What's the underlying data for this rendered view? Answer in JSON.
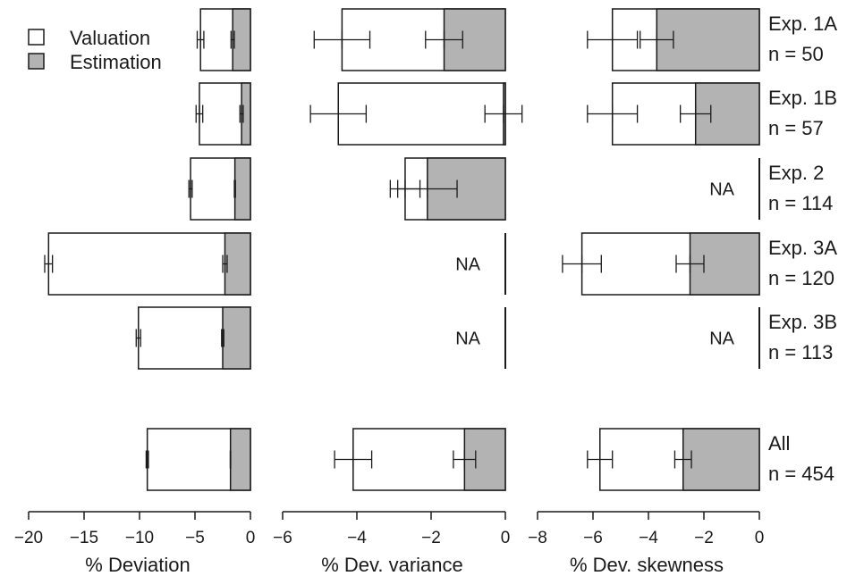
{
  "colors": {
    "valuation": "#ffffff",
    "estimation": "#b3b3b3",
    "stroke": "#1a1a1a"
  },
  "legend": {
    "valuation": "Valuation",
    "estimation": "Estimation",
    "placement": "top-left"
  },
  "na_text": "NA",
  "chart_data": [
    {
      "type": "bar",
      "orientation": "horizontal",
      "xlabel": "% Deviation",
      "xlim": [
        -20,
        0
      ],
      "ticks": [
        -20,
        -15,
        -10,
        -5,
        0
      ],
      "tick_labels": [
        "−20",
        "−15",
        "−10",
        "−5",
        "0"
      ],
      "categories": [
        "Exp. 1A n = 50",
        "Exp. 1B n = 57",
        "Exp. 2 n = 114",
        "Exp. 3A n = 120",
        "Exp. 3B n = 113",
        "All n = 454"
      ],
      "series": [
        {
          "name": "Valuation",
          "values": [
            -4.5,
            -4.6,
            -5.4,
            -18.2,
            -10.1,
            -9.3
          ],
          "err": [
            0.3,
            0.3,
            0.15,
            0.35,
            0.2,
            0.1
          ]
        },
        {
          "name": "Estimation",
          "values": [
            -1.6,
            -0.8,
            -1.4,
            -2.3,
            -2.5,
            -1.8
          ],
          "err": [
            0.15,
            0.15,
            0.05,
            0.2,
            0.1,
            0.02
          ]
        }
      ],
      "na": [
        false,
        false,
        false,
        false,
        false,
        false
      ]
    },
    {
      "type": "bar",
      "orientation": "horizontal",
      "xlabel": "% Dev. variance",
      "xlim": [
        -6,
        0
      ],
      "ticks": [
        -6,
        -4,
        -2,
        0
      ],
      "tick_labels": [
        "−6",
        "−4",
        "−2",
        "0"
      ],
      "categories": [
        "Exp. 1A n = 50",
        "Exp. 1B n = 57",
        "Exp. 2 n = 114",
        "Exp. 3A n = 120",
        "Exp. 3B n = 113",
        "All n = 454"
      ],
      "series": [
        {
          "name": "Valuation",
          "values": [
            -4.4,
            -4.5,
            -2.7,
            null,
            null,
            -4.1
          ],
          "err": [
            0.75,
            0.75,
            0.4,
            null,
            null,
            0.5
          ]
        },
        {
          "name": "Estimation",
          "values": [
            -1.65,
            -0.05,
            -2.1,
            null,
            null,
            -1.1
          ],
          "err": [
            0.5,
            0.5,
            0.8,
            null,
            null,
            0.3
          ]
        }
      ],
      "na": [
        false,
        false,
        false,
        true,
        true,
        false
      ]
    },
    {
      "type": "bar",
      "orientation": "horizontal",
      "xlabel": "% Dev. skewness",
      "xlim": [
        -8,
        0
      ],
      "ticks": [
        -8,
        -6,
        -4,
        -2,
        0
      ],
      "tick_labels": [
        "−8",
        "−6",
        "−4",
        "−2",
        "0"
      ],
      "categories": [
        "Exp. 1A n = 50",
        "Exp. 1B n = 57",
        "Exp. 2 n = 114",
        "Exp. 3A n = 120",
        "Exp. 3B n = 113",
        "All n = 454"
      ],
      "series": [
        {
          "name": "Valuation",
          "values": [
            -5.3,
            -5.3,
            null,
            -6.4,
            null,
            -5.75
          ],
          "err": [
            0.9,
            0.9,
            null,
            0.7,
            null,
            0.45
          ]
        },
        {
          "name": "Estimation",
          "values": [
            -3.7,
            -2.3,
            null,
            -2.5,
            null,
            -2.75
          ],
          "err": [
            0.6,
            0.55,
            null,
            0.5,
            null,
            0.3
          ]
        }
      ],
      "na": [
        false,
        false,
        true,
        false,
        true,
        false
      ]
    }
  ],
  "rows": [
    {
      "label": "Exp. 1A",
      "n": "n = 50"
    },
    {
      "label": "Exp. 1B",
      "n": "n = 57"
    },
    {
      "label": "Exp. 2",
      "n": "n = 114"
    },
    {
      "label": "Exp. 3A",
      "n": "n = 120"
    },
    {
      "label": "Exp. 3B",
      "n": "n = 113"
    },
    {
      "label": "All",
      "n": "n = 454"
    }
  ]
}
